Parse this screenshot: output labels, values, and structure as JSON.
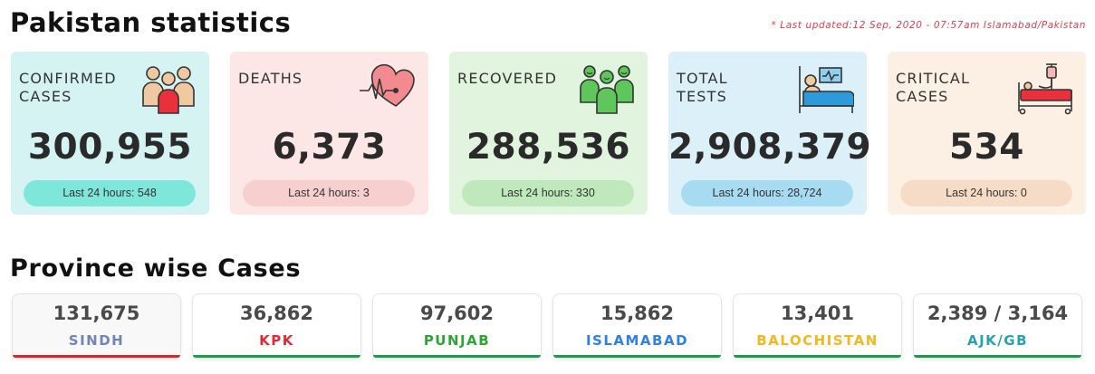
{
  "header": {
    "title": "Pakistan statistics",
    "last_updated": "* Last updated:12 Sep, 2020 - 07:57am Islamabad/Pakistan"
  },
  "stats": [
    {
      "label": "CONFIRMED\nCASES",
      "value": "300,955",
      "last24": "Last 24 hours: 548",
      "icon": "people-group-icon",
      "bg": "#d5f3f3",
      "pill": "#7fe6da"
    },
    {
      "label": "DEATHS",
      "value": "6,373",
      "last24": "Last 24 hours: 3",
      "icon": "heartbeat-icon",
      "bg": "#fce6e6",
      "pill": "#f7cfcf"
    },
    {
      "label": "RECOVERED",
      "value": "288,536",
      "last24": "Last 24 hours: 330",
      "icon": "recovered-people-icon",
      "bg": "#e0f4de",
      "pill": "#bfe8bd"
    },
    {
      "label": "TOTAL\nTESTS",
      "value": "2,908,379",
      "last24": "Last 24 hours: 28,724",
      "icon": "patient-bed-monitor-icon",
      "bg": "#dcf0f9",
      "pill": "#a6dbf2"
    },
    {
      "label": "CRITICAL\nCASES",
      "value": "534",
      "last24": "Last 24 hours: 0",
      "icon": "hospital-bed-iv-icon",
      "bg": "#fcefe4",
      "pill": "#f6dcc6"
    }
  ],
  "provinces_section": {
    "title": "Province wise Cases",
    "items": [
      {
        "value": "131,675",
        "name": "SINDH",
        "color": "#6f86b4",
        "bar": "#d42a2a"
      },
      {
        "value": "36,862",
        "name": "KPK",
        "color": "#e12a33",
        "bar": "#1e9a4a"
      },
      {
        "value": "97,602",
        "name": "PUNJAB",
        "color": "#2ea336",
        "bar": "#1e9a4a"
      },
      {
        "value": "15,862",
        "name": "ISLAMABAD",
        "color": "#2f7fe6",
        "bar": "#1e9a4a"
      },
      {
        "value": "13,401",
        "name": "BALOCHISTAN",
        "color": "#f2b820",
        "bar": "#1e9a4a"
      },
      {
        "value": "2,389 / 3,164",
        "name": "AJK/GB",
        "color": "#26a3b0",
        "bar": "#1e9a4a"
      }
    ]
  }
}
